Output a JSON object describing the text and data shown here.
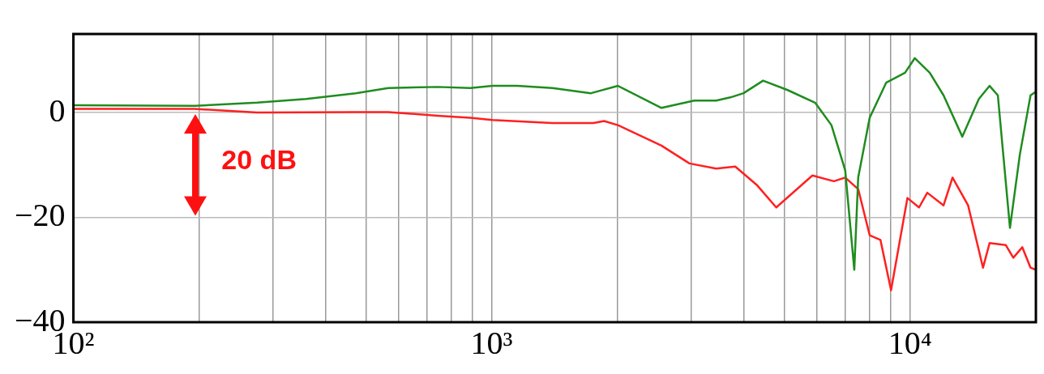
{
  "chart_data": {
    "type": "line",
    "log": "x",
    "grid": true,
    "legend": false,
    "marker": "none",
    "line_style": "solid",
    "xlim": [
      100,
      20000
    ],
    "ylim": [
      -40,
      15
    ],
    "xticks": [
      {
        "value": 100,
        "label": "10²"
      },
      {
        "value": 200,
        "label": null
      },
      {
        "value": 300,
        "label": null
      },
      {
        "value": 400,
        "label": null
      },
      {
        "value": 500,
        "label": null
      },
      {
        "value": 600,
        "label": null
      },
      {
        "value": 700,
        "label": null
      },
      {
        "value": 800,
        "label": null
      },
      {
        "value": 900,
        "label": null
      },
      {
        "value": 1000,
        "label": "10³"
      },
      {
        "value": 2000,
        "label": null
      },
      {
        "value": 3000,
        "label": null
      },
      {
        "value": 4000,
        "label": null
      },
      {
        "value": 5000,
        "label": null
      },
      {
        "value": 6000,
        "label": null
      },
      {
        "value": 7000,
        "label": null
      },
      {
        "value": 8000,
        "label": null
      },
      {
        "value": 9000,
        "label": null
      },
      {
        "value": 10000,
        "label": "10⁴"
      }
    ],
    "yticks": [
      {
        "value": -40,
        "label": "−40"
      },
      {
        "value": -20,
        "label": "−20"
      },
      0
    ],
    "annotations": [
      "20 dB"
    ],
    "series": [
      {
        "color": "#1f8c1f",
        "x": [
          100,
          195,
          275,
          360,
          473,
          566,
          743,
          889,
          1005,
          1150,
          1397,
          1727,
          2004,
          2546,
          3050,
          3441,
          3720,
          4000,
          4455,
          5100,
          5930,
          6490,
          7000,
          7360,
          7520,
          8010,
          8770,
          9730,
          10270,
          11150,
          12030,
          13340,
          14610,
          15500,
          16220,
          17340,
          18310,
          19420,
          20000
        ],
        "values": [
          1.4,
          1.3,
          1.9,
          2.6,
          3.7,
          4.7,
          4.9,
          4.7,
          5.1,
          5.1,
          4.7,
          3.7,
          5.1,
          0.9,
          2.3,
          2.3,
          2.9,
          3.7,
          6.1,
          4.3,
          1.9,
          -2.4,
          -11,
          -30,
          -12.4,
          -1,
          5.7,
          7.6,
          10.4,
          7.6,
          3.3,
          -4.6,
          2.6,
          5.1,
          3.3,
          -22,
          -8,
          3.3,
          4
        ]
      },
      {
        "color": "#ff2020",
        "x": [
          100,
          195,
          275,
          473,
          566,
          743,
          889,
          1005,
          1397,
          1750,
          1857,
          2004,
          2546,
          2970,
          3441,
          3822,
          4315,
          4790,
          5845,
          6580,
          7000,
          7520,
          8010,
          8500,
          9010,
          9860,
          10510,
          11000,
          12030,
          12640,
          13770,
          14950,
          15500,
          16950,
          17660,
          18560,
          19420,
          20000
        ],
        "values": [
          0.7,
          0.7,
          0,
          0.1,
          0.1,
          -0.6,
          -1,
          -1.4,
          -2,
          -2,
          -1.6,
          -2.4,
          -6.3,
          -9.7,
          -10.7,
          -10.3,
          -13.9,
          -18.1,
          -12,
          -13.1,
          -12.4,
          -14.6,
          -23.4,
          -24.3,
          -33.9,
          -16.3,
          -18.1,
          -15.3,
          -17.7,
          -12.4,
          -17.7,
          -29.6,
          -24.9,
          -25.3,
          -27.7,
          -25.7,
          -29.6,
          -30
        ]
      }
    ]
  }
}
